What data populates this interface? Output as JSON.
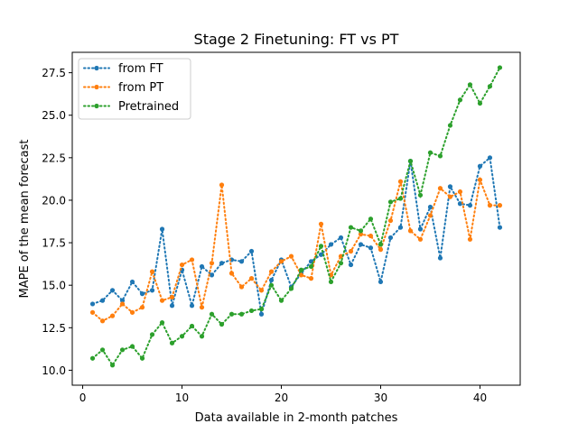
{
  "chart_data": {
    "type": "line",
    "title": "Stage 2 Finetuning: FT vs PT",
    "xlabel": "Data available in 2-month patches",
    "ylabel": "MAPE of the mean forecast",
    "xlim": [
      -1.05,
      44.05
    ],
    "ylim": [
      9.12,
      28.7
    ],
    "xticks": [
      "0",
      "10",
      "20",
      "30",
      "40"
    ],
    "yticks": [
      "10.0",
      "12.5",
      "15.0",
      "17.5",
      "20.0",
      "22.5",
      "25.0",
      "27.5"
    ],
    "grid": false,
    "legend_position": "top-left",
    "line_style": "dotted",
    "x": [
      1,
      2,
      3,
      4,
      5,
      6,
      7,
      8,
      9,
      10,
      11,
      12,
      13,
      14,
      15,
      16,
      17,
      18,
      19,
      20,
      21,
      22,
      23,
      24,
      25,
      26,
      27,
      28,
      29,
      30,
      31,
      32,
      33,
      34,
      35,
      36,
      37,
      38,
      39,
      40,
      41,
      42
    ],
    "series": [
      {
        "name": "from FT",
        "color": "#1f77b4",
        "values": [
          13.9,
          14.1,
          14.7,
          14.1,
          15.2,
          14.5,
          14.7,
          18.3,
          13.8,
          15.9,
          13.8,
          16.1,
          15.6,
          16.3,
          16.5,
          16.4,
          17.0,
          13.3,
          15.3,
          16.5,
          14.9,
          15.7,
          16.4,
          16.8,
          17.4,
          17.8,
          16.2,
          17.4,
          17.2,
          15.2,
          17.8,
          18.4,
          22.3,
          18.3,
          19.6,
          16.6,
          20.8,
          19.8,
          19.7,
          22.0,
          22.5,
          18.4
        ]
      },
      {
        "name": "from PT",
        "color": "#ff7f0e",
        "values": [
          13.4,
          12.9,
          13.2,
          13.9,
          13.4,
          13.7,
          15.8,
          14.1,
          14.3,
          16.2,
          16.5,
          13.7,
          16.3,
          20.9,
          15.7,
          14.9,
          15.4,
          14.7,
          15.8,
          16.4,
          16.7,
          15.6,
          15.4,
          18.6,
          15.6,
          16.7,
          17.0,
          18.0,
          17.9,
          17.1,
          18.8,
          21.1,
          18.2,
          17.7,
          19.1,
          20.7,
          20.2,
          20.5,
          17.7,
          21.2,
          19.7,
          19.7
        ]
      },
      {
        "name": "Pretrained",
        "color": "#2ca02c",
        "values": [
          10.7,
          11.2,
          10.3,
          11.2,
          11.4,
          10.7,
          12.1,
          12.8,
          11.6,
          12.0,
          12.6,
          12.0,
          13.3,
          12.7,
          13.3,
          13.3,
          13.5,
          13.6,
          15.0,
          14.1,
          14.8,
          15.9,
          16.1,
          17.3,
          15.2,
          16.3,
          18.4,
          18.2,
          18.9,
          17.4,
          19.9,
          20.1,
          22.3,
          20.3,
          22.8,
          22.6,
          24.4,
          25.9,
          26.8,
          25.7,
          26.7,
          27.8
        ]
      }
    ]
  }
}
